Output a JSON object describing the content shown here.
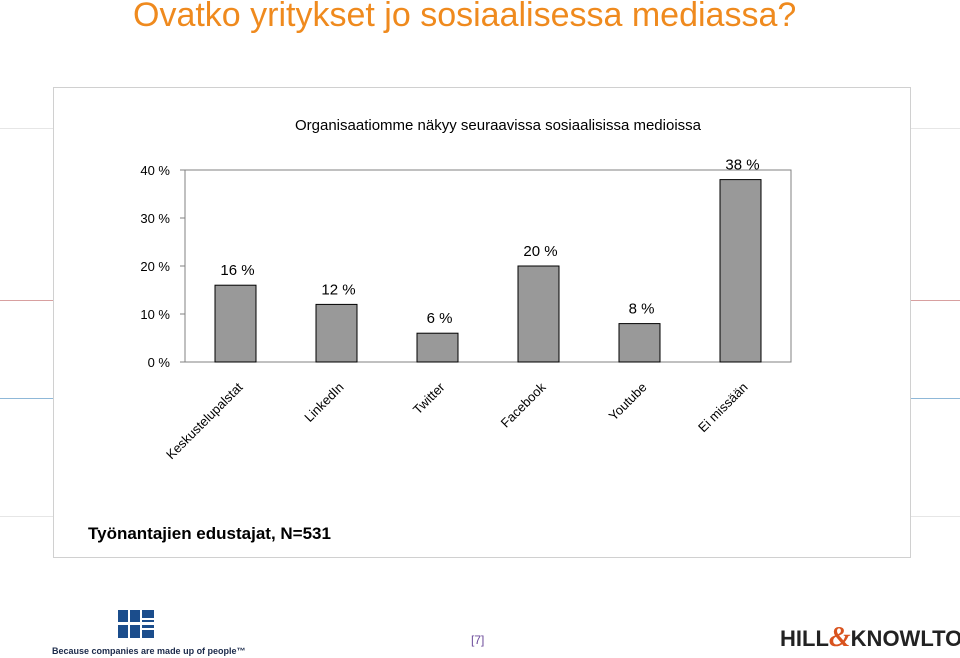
{
  "slide": {
    "title": "Ovatko yritykset jo sosiaalisessa mediassa?",
    "caption": "Työnantajien edustajat, N=531",
    "page_number": "[7]",
    "footer_tagline": "Because companies are made up of people™",
    "brand_right_part1": "HILL",
    "brand_right_amp": "&",
    "brand_right_part2": "KNOWLTON"
  },
  "colors": {
    "title": "#ef8a1e",
    "bar_fill": "#999999",
    "bar_stroke": "#000000",
    "accent_orange": "#d9531e"
  },
  "chart_data": {
    "type": "bar",
    "title": "Organisaatiomme näkyy seuraavissa sosiaalisissa medioissa",
    "categories": [
      "Keskustelupalstat",
      "LinkedIn",
      "Twitter",
      "Facebook",
      "Youtube",
      "Ei missään"
    ],
    "values": [
      16,
      12,
      6,
      20,
      8,
      38
    ],
    "value_labels": [
      "16 %",
      "12 %",
      "6 %",
      "20 %",
      "8 %",
      "38 %"
    ],
    "ylim": [
      0,
      40
    ],
    "yticks": [
      0,
      10,
      20,
      30,
      40
    ],
    "ytick_labels": [
      "0 %",
      "10 %",
      "20 %",
      "30 %",
      "40 %"
    ],
    "xlabel": "",
    "ylabel": "",
    "grid": false,
    "legend": "none"
  }
}
